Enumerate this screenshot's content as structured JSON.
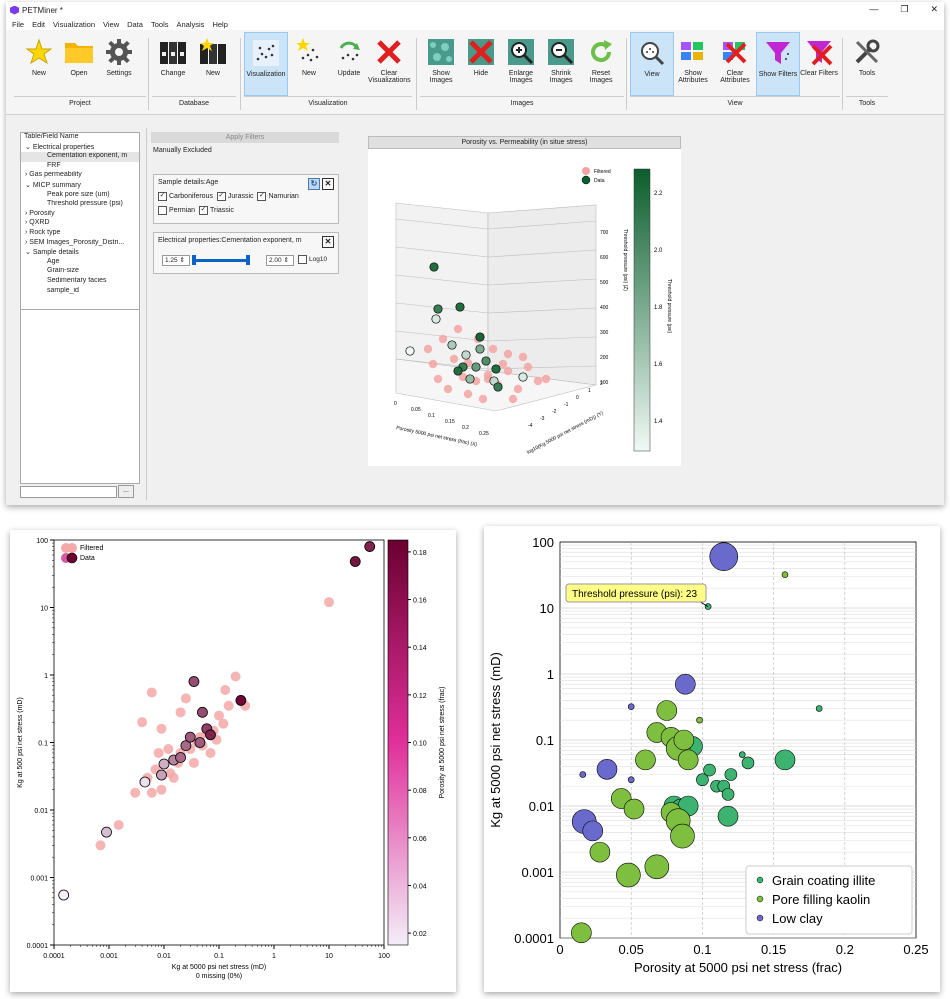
{
  "app": {
    "title": "PETMiner *",
    "window_controls": [
      "—",
      "❐",
      "✕"
    ],
    "menu": [
      "File",
      "Edit",
      "Visualization",
      "View",
      "Data",
      "Tools",
      "Analysis",
      "Help"
    ],
    "ribbon": {
      "buttons": [
        {
          "label": "New",
          "icon": "star-icon"
        },
        {
          "label": "Open",
          "icon": "folder-icon"
        },
        {
          "label": "Settings",
          "icon": "gear-icon"
        },
        {
          "label": "Change",
          "icon": "binders-icon"
        },
        {
          "label": "New",
          "icon": "binders-star-icon"
        },
        {
          "label": "Visualization",
          "icon": "scatter-icon"
        },
        {
          "label": "New",
          "icon": "scatter-star-icon"
        },
        {
          "label": "Update",
          "icon": "scatter-refresh-icon"
        },
        {
          "label": "Clear Visualizations",
          "icon": "red-x-icon"
        },
        {
          "label": "Show Images",
          "icon": "rock-image-icon"
        },
        {
          "label": "Hide",
          "icon": "red-x-icon"
        },
        {
          "label": "Enlarge Images",
          "icon": "zoom-in-icon"
        },
        {
          "label": "Shrink Images",
          "icon": "zoom-out-icon"
        },
        {
          "label": "Reset Images",
          "icon": "refresh-icon"
        },
        {
          "label": "View",
          "icon": "magnifier-scatter-icon"
        },
        {
          "label": "Show Attributes",
          "icon": "attributes-icon"
        },
        {
          "label": "Clear Attributes",
          "icon": "clear-attributes-icon"
        },
        {
          "label": "Show Filters",
          "icon": "funnel-icon"
        },
        {
          "label": "Clear Filters",
          "icon": "clear-funnel-icon"
        },
        {
          "label": "Tools",
          "icon": "wrench-screwdriver-icon"
        }
      ],
      "groups": [
        "Project",
        "Database",
        "Visualization",
        "Images",
        "View",
        "Tools"
      ]
    },
    "tree": {
      "header": "Table/Field Name",
      "items": [
        {
          "text": "Electrical properties",
          "level": 0,
          "expanded": true
        },
        {
          "text": "Cementation exponent, m",
          "level": 1,
          "selected": true
        },
        {
          "text": "FRF",
          "level": 1
        },
        {
          "text": "Gas permeability",
          "level": 0
        },
        {
          "text": "MICP summary",
          "level": 0,
          "expanded": true
        },
        {
          "text": "Peak pore size (um)",
          "level": 1
        },
        {
          "text": "Threshold pressure (psi)",
          "level": 1
        },
        {
          "text": "Porosity",
          "level": 0
        },
        {
          "text": "QXRD",
          "level": 0
        },
        {
          "text": "Rock type",
          "level": 0
        },
        {
          "text": "SEM Images_Porosity_Distri...",
          "level": 0
        },
        {
          "text": "Sample details",
          "level": 0,
          "expanded": true
        },
        {
          "text": "Age",
          "level": 1
        },
        {
          "text": "Grain-size",
          "level": 1
        },
        {
          "text": "Sedimentary facies",
          "level": 1
        },
        {
          "text": "sample_id",
          "level": 1
        }
      ],
      "search_button": "..."
    },
    "filters": {
      "apply_label": "Apply Filters",
      "manually_excluded": "Manually Excluded",
      "age_title": "Sample details:Age",
      "age_options": [
        {
          "label": "Carboniferous",
          "checked": true
        },
        {
          "label": "Jurassic",
          "checked": true
        },
        {
          "label": "Namurian",
          "checked": true
        },
        {
          "label": "Permian",
          "checked": false
        },
        {
          "label": "Triassic",
          "checked": true
        }
      ],
      "m_title": "Electrical properties:Cementation exponent, m",
      "m_min": "1.25",
      "m_max": "2.00",
      "log10_label": "Log10",
      "log10_checked": false
    },
    "chart3d": {
      "title": "Porosity vs. Permeability (in situe stress)",
      "legend": [
        "Filtered",
        "Data"
      ],
      "xlabel": "Porosity 5000 psi net stress (frac) (X)",
      "ylabel": "log10(Kg 5000 psi net stress (mD)) (Y)",
      "zlabel": "Threshold pressure (psi) (Z)",
      "x_ticks": [
        "0",
        "0.05",
        "0.1",
        "0.15",
        "0.2",
        "0.25"
      ],
      "y_ticks": [
        "-4",
        "-3",
        "-2",
        "-1",
        "0",
        "1",
        "2"
      ],
      "z_ticks": [
        "100",
        "200",
        "300",
        "400",
        "500",
        "600",
        "700"
      ],
      "colorbar_label": "Threshold pressure (psi)",
      "colorbar_ticks": [
        "1.4",
        "1.6",
        "1.8",
        "2.0",
        "2.2"
      ],
      "colors": {
        "filtered": "#f4a3a3",
        "low": "#f0f9f6",
        "high": "#0b5e2b"
      }
    }
  },
  "chart_data": [
    {
      "type": "scatter",
      "title": "Porosity vs. Permeability (in situe stress)",
      "xlabel": "Porosity 5000 psi net stress (frac) (X)",
      "ylabel": "log10(Kg 5000 psi net stress (mD)) (Y)",
      "zlabel": "Threshold pressure (psi) (Z)",
      "xlim": [
        0,
        0.25
      ],
      "ylim": [
        -4,
        2
      ],
      "zlim": [
        100,
        700
      ],
      "series": [
        {
          "name": "Filtered"
        },
        {
          "name": "Data"
        }
      ],
      "colorbar": {
        "label": "Threshold pressure (psi)",
        "range": [
          1.25,
          2.25
        ]
      }
    },
    {
      "type": "scatter",
      "xlabel": "Kg at 5000 psi net stress (mD)",
      "xlabel2": "0 missing (0%)",
      "ylabel": "Kg at 500 psi net stress (mD)",
      "xscale": "log",
      "yscale": "log",
      "xlim": [
        0.0001,
        100
      ],
      "ylim": [
        0.0001,
        100
      ],
      "x_ticks": [
        "0.0001",
        "0.001",
        "0.01",
        "0.1",
        "1",
        "10",
        "100"
      ],
      "y_ticks": [
        "0.0001",
        "0.001",
        "0.01",
        "0.1",
        "1",
        "10",
        "100"
      ],
      "legend": [
        "Filtered",
        "Data"
      ],
      "colorbar": {
        "label": "Porosity at 5000 psi net stress (frac)",
        "range": [
          0.015,
          0.185
        ],
        "ticks": [
          "0.02",
          "0.04",
          "0.06",
          "0.08",
          "0.10",
          "0.12",
          "0.14",
          "0.16",
          "0.18"
        ],
        "low_color": "#f3eef8",
        "high_color": "#6b0030"
      },
      "filtered_color": "#f4a8a8",
      "filtered_points": [
        [
          0.0007,
          0.003
        ],
        [
          0.0015,
          0.006
        ],
        [
          0.003,
          0.018
        ],
        [
          0.005,
          0.03
        ],
        [
          0.006,
          0.018
        ],
        [
          0.007,
          0.04
        ],
        [
          0.008,
          0.07
        ],
        [
          0.009,
          0.02
        ],
        [
          0.009,
          0.16
        ],
        [
          0.012,
          0.08
        ],
        [
          0.013,
          0.035
        ],
        [
          0.015,
          0.03
        ],
        [
          0.018,
          0.05
        ],
        [
          0.02,
          0.07
        ],
        [
          0.025,
          0.45
        ],
        [
          0.03,
          0.08
        ],
        [
          0.035,
          0.05
        ],
        [
          0.04,
          0.1
        ],
        [
          0.045,
          0.12
        ],
        [
          0.05,
          0.09
        ],
        [
          0.06,
          0.14
        ],
        [
          0.07,
          0.07
        ],
        [
          0.08,
          0.15
        ],
        [
          0.09,
          0.11
        ],
        [
          0.1,
          0.25
        ],
        [
          0.12,
          0.19
        ],
        [
          0.13,
          0.6
        ],
        [
          0.15,
          0.35
        ],
        [
          0.2,
          0.95
        ],
        [
          0.3,
          0.35
        ],
        [
          10,
          12
        ],
        [
          0.006,
          0.55
        ],
        [
          0.004,
          0.2
        ],
        [
          0.02,
          0.28
        ]
      ],
      "data_points": [
        {
          "x": 0.00015,
          "y": 0.00055,
          "c": 0.015
        },
        {
          "x": 0.0009,
          "y": 0.0047,
          "c": 0.05
        },
        {
          "x": 0.0045,
          "y": 0.026,
          "c": 0.025
        },
        {
          "x": 0.009,
          "y": 0.033,
          "c": 0.07
        },
        {
          "x": 0.01,
          "y": 0.048,
          "c": 0.06
        },
        {
          "x": 0.015,
          "y": 0.055,
          "c": 0.09
        },
        {
          "x": 0.02,
          "y": 0.06,
          "c": 0.11
        },
        {
          "x": 0.025,
          "y": 0.09,
          "c": 0.11
        },
        {
          "x": 0.03,
          "y": 0.12,
          "c": 0.12
        },
        {
          "x": 0.045,
          "y": 0.1,
          "c": 0.12
        },
        {
          "x": 0.05,
          "y": 0.28,
          "c": 0.13
        },
        {
          "x": 0.06,
          "y": 0.16,
          "c": 0.14
        },
        {
          "x": 0.07,
          "y": 0.13,
          "c": 0.16
        },
        {
          "x": 0.035,
          "y": 0.8,
          "c": 0.13
        },
        {
          "x": 0.25,
          "y": 0.42,
          "c": 0.18
        },
        {
          "x": 30,
          "y": 48,
          "c": 0.17
        },
        {
          "x": 55,
          "y": 80,
          "c": 0.16
        }
      ]
    },
    {
      "type": "scatter",
      "xlabel": "Porosity at 5000 psi net stress (frac)",
      "ylabel": "Kg at 5000 psi net stress (mD)",
      "yscale": "log",
      "xlim": [
        0,
        0.25
      ],
      "ylim": [
        0.0001,
        100
      ],
      "x_ticks": [
        "0",
        "0.05",
        "0.1",
        "0.15",
        "0.2",
        "0.25"
      ],
      "y_ticks": [
        "0.0001",
        "0.001",
        "0.01",
        "0.1",
        "1",
        "10",
        "100"
      ],
      "tooltip": "Threshold pressure (psi): 23",
      "tooltip_point": {
        "x": 0.104,
        "y": 10.5
      },
      "series": [
        {
          "name": "Grain coating illite",
          "color": "#3cb371",
          "points": [
            [
              0.1,
              0.025,
              2
            ],
            [
              0.105,
              0.035,
              2
            ],
            [
              0.11,
              0.02,
              2
            ],
            [
              0.115,
              0.02,
              2
            ],
            [
              0.12,
              0.03,
              2
            ],
            [
              0.118,
              0.015,
              2
            ],
            [
              0.128,
              0.06,
              1
            ],
            [
              0.132,
              0.045,
              2
            ],
            [
              0.158,
              0.05,
              3
            ],
            [
              0.182,
              0.3,
              1
            ],
            [
              0.104,
              10.5,
              1
            ],
            [
              0.08,
              0.01,
              3
            ],
            [
              0.085,
              0.009,
              3
            ],
            [
              0.09,
              0.01,
              3
            ],
            [
              0.118,
              0.007,
              3
            ],
            [
              0.093,
              0.08,
              3
            ]
          ]
        },
        {
          "name": "Pore filling kaolin",
          "color": "#7fbf3f",
          "points": [
            [
              0.015,
              0.00012,
              3
            ],
            [
              0.028,
              0.002,
              3
            ],
            [
              0.048,
              0.0009,
              4
            ],
            [
              0.068,
              0.0012,
              4
            ],
            [
              0.043,
              0.013,
              3
            ],
            [
              0.052,
              0.009,
              3
            ],
            [
              0.06,
              0.05,
              3
            ],
            [
              0.068,
              0.13,
              3
            ],
            [
              0.078,
              0.11,
              3
            ],
            [
              0.083,
              0.075,
              4
            ],
            [
              0.087,
              0.1,
              3
            ],
            [
              0.098,
              0.2,
              1
            ],
            [
              0.075,
              0.28,
              3
            ],
            [
              0.09,
              0.05,
              3
            ],
            [
              0.078,
              0.008,
              3
            ],
            [
              0.083,
              0.006,
              4
            ],
            [
              0.086,
              0.0035,
              4
            ],
            [
              0.158,
              32,
              1
            ]
          ]
        },
        {
          "name": "Low clay",
          "color": "#6a6acd",
          "points": [
            [
              0.016,
              0.03,
              1
            ],
            [
              0.033,
              0.036,
              3
            ],
            [
              0.05,
              0.32,
              1
            ],
            [
              0.05,
              0.025,
              1
            ],
            [
              0.088,
              0.7,
              3
            ],
            [
              0.115,
              60,
              5
            ],
            [
              0.017,
              0.0058,
              4
            ],
            [
              0.023,
              0.0042,
              3
            ]
          ]
        }
      ],
      "legend_position": "lower-right",
      "grid": true
    }
  ]
}
